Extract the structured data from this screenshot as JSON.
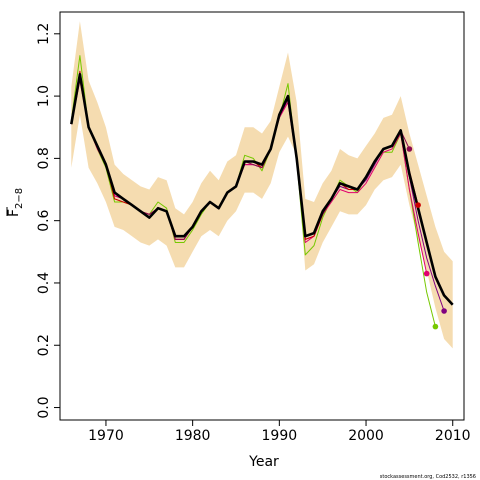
{
  "chart_data": {
    "type": "line",
    "xlabel": "Year",
    "ylabel": "F",
    "ylabel_sub": "2−8",
    "footnote": "stockassessment.org, Cod2532, r1356",
    "xlim": [
      1964.7,
      2011.3
    ],
    "ylim": [
      -0.04,
      1.27
    ],
    "xticks": [
      1970,
      1980,
      1990,
      2000,
      2010
    ],
    "yticks": [
      0.0,
      0.2,
      0.4,
      0.6,
      0.8,
      1.0,
      1.2
    ],
    "colors": {
      "band": "#f5dcb0",
      "main": "#000000",
      "retro_1": "#8b0a50",
      "retro_2": "#e0006e",
      "retro_3": "#76c800",
      "retro_4": "#800080",
      "retro_5": "#cc0000"
    },
    "band": {
      "x": [
        1966,
        1967,
        1968,
        1969,
        1970,
        1971,
        1972,
        1973,
        1974,
        1975,
        1976,
        1977,
        1978,
        1979,
        1980,
        1981,
        1982,
        1983,
        1984,
        1985,
        1986,
        1987,
        1988,
        1989,
        1990,
        1991,
        1992,
        1993,
        1994,
        1995,
        1996,
        1997,
        1998,
        1999,
        2000,
        2001,
        2002,
        2003,
        2004,
        2005,
        2006,
        2007,
        2008,
        2009,
        2010
      ],
      "upper": [
        1.03,
        1.24,
        1.05,
        0.98,
        0.9,
        0.78,
        0.75,
        0.73,
        0.71,
        0.7,
        0.74,
        0.73,
        0.64,
        0.62,
        0.66,
        0.72,
        0.76,
        0.73,
        0.79,
        0.81,
        0.9,
        0.9,
        0.88,
        0.92,
        1.03,
        1.14,
        0.98,
        0.67,
        0.66,
        0.72,
        0.76,
        0.83,
        0.81,
        0.8,
        0.84,
        0.88,
        0.93,
        0.94,
        1.0,
        0.88,
        0.78,
        0.68,
        0.58,
        0.5,
        0.47
      ],
      "lower": [
        0.77,
        0.94,
        0.77,
        0.72,
        0.66,
        0.58,
        0.57,
        0.55,
        0.53,
        0.52,
        0.54,
        0.52,
        0.45,
        0.45,
        0.5,
        0.55,
        0.57,
        0.55,
        0.6,
        0.63,
        0.69,
        0.69,
        0.67,
        0.72,
        0.82,
        0.87,
        0.81,
        0.44,
        0.46,
        0.53,
        0.58,
        0.63,
        0.62,
        0.62,
        0.65,
        0.7,
        0.73,
        0.74,
        0.78,
        0.65,
        0.54,
        0.44,
        0.32,
        0.22,
        0.19
      ]
    },
    "series": [
      {
        "color": "#76c800",
        "x": [
          1966,
          1967,
          1968,
          1969,
          1970,
          1971,
          1972,
          1973,
          1974,
          1975,
          1976,
          1977,
          1978,
          1979,
          1980,
          1981,
          1982,
          1983,
          1984,
          1985,
          1986,
          1987,
          1988,
          1989,
          1990,
          1991,
          1992,
          1993,
          1994,
          1995,
          1996,
          1997,
          1998,
          1999,
          2000,
          2001,
          2002,
          2003,
          2004,
          2005,
          2006,
          2007,
          2008
        ],
        "y": [
          0.92,
          1.13,
          0.9,
          0.83,
          0.77,
          0.66,
          0.66,
          0.65,
          0.63,
          0.62,
          0.66,
          0.64,
          0.53,
          0.53,
          0.57,
          0.62,
          0.66,
          0.64,
          0.69,
          0.71,
          0.81,
          0.8,
          0.76,
          0.83,
          0.93,
          1.04,
          0.79,
          0.49,
          0.52,
          0.61,
          0.67,
          0.73,
          0.71,
          0.69,
          0.74,
          0.79,
          0.82,
          0.82,
          0.88,
          0.7,
          0.53,
          0.37,
          0.26
        ],
        "end_point": true
      },
      {
        "color": "#800080",
        "x": [
          1966,
          1967,
          1968,
          1969,
          1970,
          1971,
          1972,
          1973,
          1974,
          1975,
          1976,
          1977,
          1978,
          1979,
          1980,
          1981,
          1982,
          1983,
          1984,
          1985,
          1986,
          1987,
          1988,
          1989,
          1990,
          1991,
          1992,
          1993,
          1994,
          1995,
          1996,
          1997,
          1998,
          1999,
          2000,
          2001,
          2002,
          2003,
          2004,
          2005,
          2006,
          2007,
          2008,
          2009
        ],
        "y": [
          0.91,
          1.07,
          0.9,
          0.84,
          0.78,
          0.68,
          0.67,
          0.65,
          0.63,
          0.61,
          0.64,
          0.63,
          0.54,
          0.54,
          0.58,
          0.63,
          0.66,
          0.64,
          0.69,
          0.71,
          0.78,
          0.78,
          0.77,
          0.83,
          0.93,
          0.99,
          0.8,
          0.54,
          0.55,
          0.62,
          0.67,
          0.71,
          0.7,
          0.7,
          0.73,
          0.78,
          0.83,
          0.84,
          0.89,
          0.74,
          0.6,
          0.48,
          0.39,
          0.31
        ],
        "end_point": true
      },
      {
        "color": "#e0006e",
        "x": [
          1966,
          1967,
          1968,
          1969,
          1970,
          1971,
          1972,
          1973,
          1974,
          1975,
          1976,
          1977,
          1978,
          1979,
          1980,
          1981,
          1982,
          1983,
          1984,
          1985,
          1986,
          1987,
          1988,
          1989,
          1990,
          1991,
          1992,
          1993,
          1994,
          1995,
          1996,
          1997,
          1998,
          1999,
          2000,
          2001,
          2002,
          2003,
          2004,
          2005,
          2006,
          2007
        ],
        "y": [
          0.91,
          1.05,
          0.9,
          0.83,
          0.78,
          0.68,
          0.67,
          0.65,
          0.63,
          0.62,
          0.64,
          0.63,
          0.54,
          0.54,
          0.58,
          0.63,
          0.66,
          0.64,
          0.69,
          0.71,
          0.78,
          0.78,
          0.77,
          0.83,
          0.93,
          0.98,
          0.79,
          0.53,
          0.55,
          0.62,
          0.66,
          0.7,
          0.69,
          0.69,
          0.72,
          0.77,
          0.82,
          0.83,
          0.88,
          0.7,
          0.56,
          0.43
        ],
        "end_point": true
      },
      {
        "color": "#cc0000",
        "x": [
          1966,
          1967,
          1968,
          1969,
          1970,
          1971,
          1972,
          1973,
          1974,
          1975,
          1976,
          1977,
          1978,
          1979,
          1980,
          1981,
          1982,
          1983,
          1984,
          1985,
          1986,
          1987,
          1988,
          1989,
          1990,
          1991,
          1992,
          1993,
          1994,
          1995,
          1996,
          1997,
          1998,
          1999,
          2000,
          2001,
          2002,
          2003,
          2004,
          2005,
          2006
        ],
        "y": [
          0.91,
          1.08,
          0.9,
          0.84,
          0.78,
          0.67,
          0.66,
          0.65,
          0.63,
          0.61,
          0.64,
          0.63,
          0.54,
          0.54,
          0.58,
          0.63,
          0.66,
          0.64,
          0.69,
          0.71,
          0.79,
          0.79,
          0.77,
          0.83,
          0.94,
          1.0,
          0.8,
          0.54,
          0.55,
          0.62,
          0.67,
          0.72,
          0.7,
          0.7,
          0.74,
          0.79,
          0.83,
          0.84,
          0.89,
          0.76,
          0.65
        ],
        "end_point": true
      },
      {
        "color": "#8b0a50",
        "x": [
          1966,
          1967,
          1968,
          1969,
          1970,
          1971,
          1972,
          1973,
          1974,
          1975,
          1976,
          1977,
          1978,
          1979,
          1980,
          1981,
          1982,
          1983,
          1984,
          1985,
          1986,
          1987,
          1988,
          1989,
          1990,
          1991,
          1992,
          1993,
          1994,
          1995,
          1996,
          1997,
          1998,
          1999,
          2000,
          2001,
          2002,
          2003,
          2004,
          2005
        ],
        "y": [
          0.91,
          1.06,
          0.9,
          0.84,
          0.78,
          0.69,
          0.67,
          0.65,
          0.63,
          0.62,
          0.64,
          0.63,
          0.54,
          0.54,
          0.58,
          0.63,
          0.66,
          0.64,
          0.69,
          0.71,
          0.79,
          0.78,
          0.77,
          0.83,
          0.94,
          0.99,
          0.8,
          0.55,
          0.56,
          0.62,
          0.67,
          0.72,
          0.71,
          0.7,
          0.74,
          0.79,
          0.83,
          0.84,
          0.89,
          0.83
        ],
        "end_point": true
      },
      {
        "color": "#000000",
        "main": true,
        "x": [
          1966,
          1967,
          1968,
          1969,
          1970,
          1971,
          1972,
          1973,
          1974,
          1975,
          1976,
          1977,
          1978,
          1979,
          1980,
          1981,
          1982,
          1983,
          1984,
          1985,
          1986,
          1987,
          1988,
          1989,
          1990,
          1991,
          1992,
          1993,
          1994,
          1995,
          1996,
          1997,
          1998,
          1999,
          2000,
          2001,
          2002,
          2003,
          2004,
          2005,
          2006,
          2007,
          2008,
          2009,
          2010
        ],
        "y": [
          0.91,
          1.07,
          0.9,
          0.84,
          0.78,
          0.69,
          0.67,
          0.65,
          0.63,
          0.61,
          0.64,
          0.63,
          0.55,
          0.55,
          0.58,
          0.63,
          0.66,
          0.64,
          0.69,
          0.71,
          0.79,
          0.79,
          0.78,
          0.83,
          0.94,
          1.0,
          0.8,
          0.55,
          0.56,
          0.63,
          0.67,
          0.72,
          0.71,
          0.7,
          0.74,
          0.79,
          0.83,
          0.84,
          0.89,
          0.75,
          0.64,
          0.53,
          0.42,
          0.36,
          0.33
        ],
        "end_point": false
      }
    ]
  }
}
